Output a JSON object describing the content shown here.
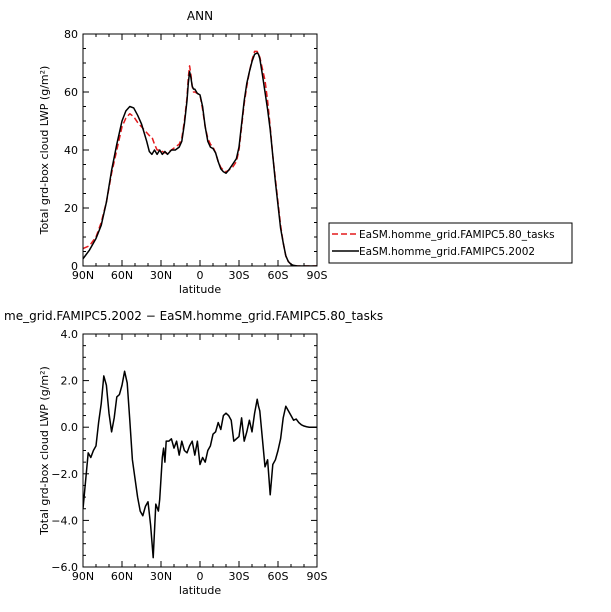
{
  "chart_data": [
    {
      "type": "line",
      "title": "ANN",
      "xlabel": "latitude",
      "ylabel": "Total grd-box cloud LWP (g/m²)",
      "xlim": [
        90,
        -90
      ],
      "ylim": [
        0,
        80
      ],
      "xticks": [
        90,
        60,
        30,
        0,
        -30,
        -60,
        -90
      ],
      "xtick_labels": [
        "90N",
        "60N",
        "30N",
        "0",
        "30S",
        "60S",
        "90S"
      ],
      "yticks": [
        0,
        20,
        40,
        60,
        80
      ],
      "ytick_labels": [
        "0",
        "20",
        "40",
        "60",
        "80"
      ],
      "legend_position": "right",
      "series": [
        {
          "name": "EaSM.homme_grid.FAMIPC5.80_tasks",
          "color": "#e41a1c",
          "dash": "dashed",
          "x": [
            90,
            85,
            80,
            76,
            72,
            68,
            64,
            60,
            57,
            54,
            51,
            48,
            45,
            43,
            41,
            39,
            37,
            35,
            33,
            31,
            29,
            27,
            25,
            22,
            19,
            16,
            14,
            12,
            10,
            9,
            8,
            7,
            6,
            5,
            4,
            2,
            0,
            -2,
            -4,
            -6,
            -8,
            -10,
            -12,
            -14,
            -16,
            -18,
            -20,
            -22,
            -25,
            -28,
            -30,
            -32,
            -34,
            -36,
            -38,
            -40,
            -42,
            -44,
            -45,
            -46,
            -48,
            -50,
            -52,
            -54,
            -56,
            -58,
            -60,
            -62,
            -64,
            -66,
            -68,
            -70,
            -72,
            -75,
            -78,
            -80,
            -84,
            -90
          ],
          "y": [
            6,
            7,
            10,
            15,
            22,
            32,
            40,
            48,
            51,
            52.5,
            51.5,
            49.5,
            48,
            47,
            46,
            45,
            44.5,
            42,
            40,
            40,
            39.5,
            39,
            39,
            40,
            41,
            42,
            44,
            50,
            58,
            65,
            69,
            66,
            62,
            60,
            60,
            59.5,
            59,
            54,
            48,
            44,
            42,
            41,
            39,
            36,
            34,
            33,
            32.5,
            33,
            34,
            36,
            40,
            48,
            56,
            62,
            67,
            71,
            74,
            74,
            73,
            72,
            68,
            64,
            57,
            48,
            38,
            30,
            22,
            14,
            8,
            3.5,
            1.5,
            0.6,
            0.2,
            0,
            0,
            0,
            0,
            0
          ]
        },
        {
          "name": "EaSM.homme_grid.FAMIPC5.2002",
          "color": "#000000",
          "dash": "solid",
          "x": [
            90,
            85,
            80,
            76,
            72,
            68,
            64,
            60,
            57,
            54,
            51,
            48,
            45,
            43,
            41,
            39,
            37,
            35,
            33,
            31,
            29,
            27,
            25,
            22,
            19,
            16,
            14,
            12,
            10,
            9,
            8,
            7,
            6,
            5,
            4,
            2,
            0,
            -2,
            -4,
            -6,
            -8,
            -10,
            -12,
            -14,
            -16,
            -18,
            -20,
            -22,
            -25,
            -28,
            -30,
            -32,
            -34,
            -36,
            -38,
            -40,
            -42,
            -44,
            -45,
            -46,
            -48,
            -50,
            -52,
            -54,
            -56,
            -58,
            -60,
            -62,
            -64,
            -66,
            -68,
            -70,
            -72,
            -75,
            -78,
            -80,
            -84,
            -90
          ],
          "y": [
            2.5,
            5.5,
            9.5,
            14,
            22,
            33,
            42,
            50,
            53.5,
            55,
            54.5,
            52,
            49,
            46,
            43,
            39.5,
            38.5,
            40,
            38.5,
            40,
            38.5,
            39.5,
            38.5,
            40,
            40,
            41,
            43,
            49,
            57,
            63,
            67,
            65,
            62,
            61,
            61,
            59.5,
            59,
            55,
            48,
            43,
            41,
            40.5,
            39,
            36,
            33.5,
            32.5,
            32,
            33,
            35,
            37,
            41,
            49,
            57,
            63,
            67,
            70.5,
            73,
            73.5,
            73,
            71.5,
            66,
            60,
            54,
            47,
            38,
            29,
            21,
            13,
            8,
            3.5,
            1.5,
            0.6,
            0.2,
            0,
            0,
            0,
            0,
            0
          ]
        }
      ]
    },
    {
      "type": "line",
      "title": "me_grid.FAMIPC5.2002 − EaSM.homme_grid.FAMIPC5.80_tasks",
      "xlabel": "latitude",
      "ylabel": "Total grd-box cloud LWP (g/m²)",
      "xlim": [
        90,
        -90
      ],
      "ylim": [
        -6,
        4
      ],
      "xticks": [
        90,
        60,
        30,
        0,
        -30,
        -60,
        -90
      ],
      "xtick_labels": [
        "90N",
        "60N",
        "30N",
        "0",
        "30S",
        "60S",
        "90S"
      ],
      "yticks": [
        4,
        2,
        0,
        -2,
        -4,
        -6
      ],
      "ytick_labels": [
        "4.0",
        "2.0",
        "0.0",
        "−2.0",
        "−4.0",
        "−6.0"
      ],
      "series": [
        {
          "color": "#000000",
          "dash": "solid",
          "x": [
            90,
            88,
            86,
            84,
            82,
            80,
            78,
            76,
            74,
            72,
            70,
            68,
            66,
            64,
            62,
            60,
            58,
            56,
            54,
            52,
            50,
            48,
            46,
            44,
            42,
            40,
            38,
            36,
            34,
            32,
            31,
            30,
            29,
            28,
            27,
            26,
            24,
            22,
            20,
            18,
            16,
            14,
            12,
            10,
            8,
            6,
            4,
            2,
            0,
            -2,
            -4,
            -6,
            -8,
            -10,
            -12,
            -14,
            -16,
            -18,
            -20,
            -22,
            -24,
            -26,
            -28,
            -30,
            -32,
            -34,
            -36,
            -38,
            -40,
            -42,
            -44,
            -45,
            -46,
            -48,
            -50,
            -52,
            -54,
            -56,
            -58,
            -60,
            -62,
            -64,
            -66,
            -68,
            -70,
            -72,
            -74,
            -76,
            -78,
            -80,
            -82,
            -84,
            -86,
            -88,
            -90
          ],
          "y": [
            -3.5,
            -2.3,
            -1.1,
            -1.3,
            -1.0,
            -0.8,
            0.2,
            1.0,
            2.2,
            1.8,
            0.6,
            -0.2,
            0.4,
            1.3,
            1.4,
            1.8,
            2.4,
            1.9,
            0.3,
            -1.4,
            -2.2,
            -3.0,
            -3.6,
            -3.8,
            -3.4,
            -3.2,
            -4.2,
            -5.6,
            -3.3,
            -3.6,
            -3.1,
            -2.2,
            -1.3,
            -0.9,
            -1.5,
            -0.6,
            -0.6,
            -0.5,
            -0.9,
            -0.6,
            -1.2,
            -0.6,
            -1.0,
            -1.1,
            -0.8,
            -0.6,
            -1.2,
            -0.6,
            -1.6,
            -1.3,
            -1.5,
            -1.0,
            -0.8,
            -0.3,
            -0.2,
            0.2,
            -0.1,
            0.5,
            0.6,
            0.5,
            0.3,
            -0.6,
            -0.5,
            -0.4,
            0.4,
            -0.6,
            -0.2,
            0.3,
            -0.2,
            0.6,
            1.2,
            0.9,
            0.7,
            -0.5,
            -1.7,
            -1.4,
            -2.9,
            -1.6,
            -1.4,
            -1.0,
            -0.5,
            0.4,
            0.9,
            0.7,
            0.5,
            0.3,
            0.35,
            0.2,
            0.1,
            0.05,
            0.02,
            0.0,
            0.0,
            0.0,
            0.0
          ]
        }
      ]
    }
  ]
}
